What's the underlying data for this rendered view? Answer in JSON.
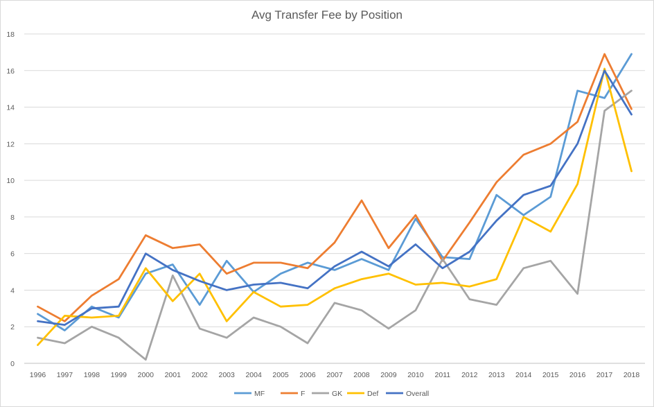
{
  "chart_data": {
    "type": "line",
    "title": "Avg Transfer Fee by Position",
    "xlabel": "",
    "ylabel": "",
    "x": [
      "1996",
      "1997",
      "1998",
      "1999",
      "2000",
      "2001",
      "2002",
      "2003",
      "2004",
      "2005",
      "2006",
      "2007",
      "2008",
      "2009",
      "2010",
      "2011",
      "2012",
      "2013",
      "2014",
      "2015",
      "2016",
      "2017",
      "2018"
    ],
    "ylim": [
      0,
      18
    ],
    "yticks": [
      0,
      2,
      4,
      6,
      8,
      10,
      12,
      14,
      16,
      18
    ],
    "grid": true,
    "legend_position": "bottom",
    "series": [
      {
        "name": "MF",
        "color": "#5b9bd5",
        "values": [
          2.7,
          1.8,
          3.1,
          2.5,
          4.9,
          5.4,
          3.2,
          5.6,
          3.9,
          4.9,
          5.5,
          5.1,
          5.7,
          5.1,
          7.9,
          5.8,
          5.7,
          9.2,
          8.1,
          9.1,
          14.9,
          14.5,
          16.9
        ]
      },
      {
        "name": "F",
        "color": "#ed7d31",
        "values": [
          3.1,
          2.3,
          3.7,
          4.6,
          7.0,
          6.3,
          6.5,
          4.9,
          5.5,
          5.5,
          5.2,
          6.6,
          8.9,
          6.3,
          8.1,
          5.6,
          7.7,
          9.9,
          11.4,
          12.0,
          13.2,
          16.9,
          13.9
        ]
      },
      {
        "name": "GK",
        "color": "#a5a5a5",
        "values": [
          1.4,
          1.1,
          2.0,
          1.4,
          0.2,
          4.8,
          1.9,
          1.4,
          2.5,
          2.0,
          1.1,
          3.3,
          2.9,
          1.9,
          2.9,
          5.7,
          3.5,
          3.2,
          5.2,
          5.6,
          3.8,
          13.8,
          14.9
        ]
      },
      {
        "name": "Def",
        "color": "#ffc000",
        "values": [
          1.0,
          2.6,
          2.5,
          2.6,
          5.2,
          3.4,
          4.9,
          2.3,
          3.9,
          3.1,
          3.2,
          4.1,
          4.6,
          4.9,
          4.3,
          4.4,
          4.2,
          4.6,
          8.0,
          7.2,
          9.8,
          16.1,
          10.5
        ]
      },
      {
        "name": "Overall",
        "color": "#4472c4",
        "values": [
          2.3,
          2.1,
          3.0,
          3.1,
          6.0,
          5.1,
          4.5,
          4.0,
          4.3,
          4.4,
          4.1,
          5.3,
          6.1,
          5.3,
          6.5,
          5.2,
          6.1,
          7.8,
          9.2,
          9.7,
          12.0,
          16.0,
          13.6
        ]
      }
    ]
  }
}
